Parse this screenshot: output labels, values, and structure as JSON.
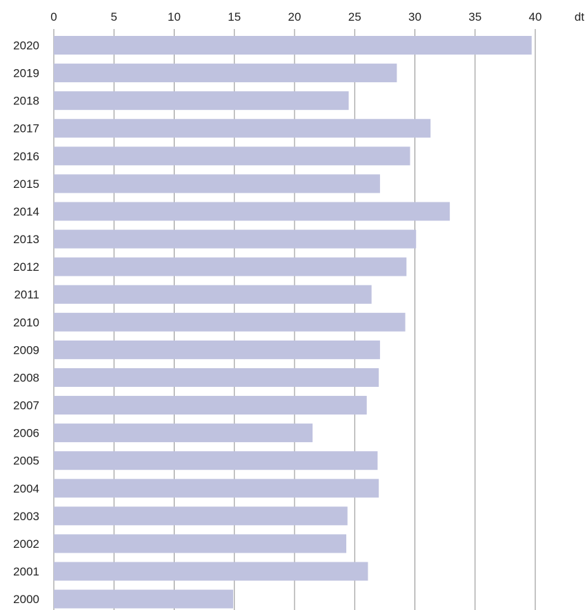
{
  "chart_data": {
    "type": "bar",
    "orientation": "horizontal",
    "categories": [
      "2020",
      "2019",
      "2018",
      "2017",
      "2016",
      "2015",
      "2014",
      "2013",
      "2012",
      "2011",
      "2010",
      "2009",
      "2008",
      "2007",
      "2006",
      "2005",
      "2004",
      "2003",
      "2002",
      "2001",
      "2000"
    ],
    "series": [
      {
        "values": [
          39.7,
          28.5,
          24.5,
          31.3,
          29.6,
          27.1,
          32.9,
          30.1,
          29.3,
          26.4,
          29.2,
          27.1,
          27.0,
          26.0,
          21.5,
          26.9,
          27.0,
          24.4,
          24.3,
          26.1,
          14.9
        ],
        "color": "#bfc2df"
      }
    ],
    "x_ticks": [
      "0",
      "5",
      "10",
      "15",
      "20",
      "25",
      "30",
      "35",
      "40"
    ],
    "xlim": [
      0,
      40
    ],
    "unit_label": "dt",
    "tick_position": "top",
    "grid": "vertical",
    "title": "",
    "xlabel": "",
    "ylabel": ""
  }
}
